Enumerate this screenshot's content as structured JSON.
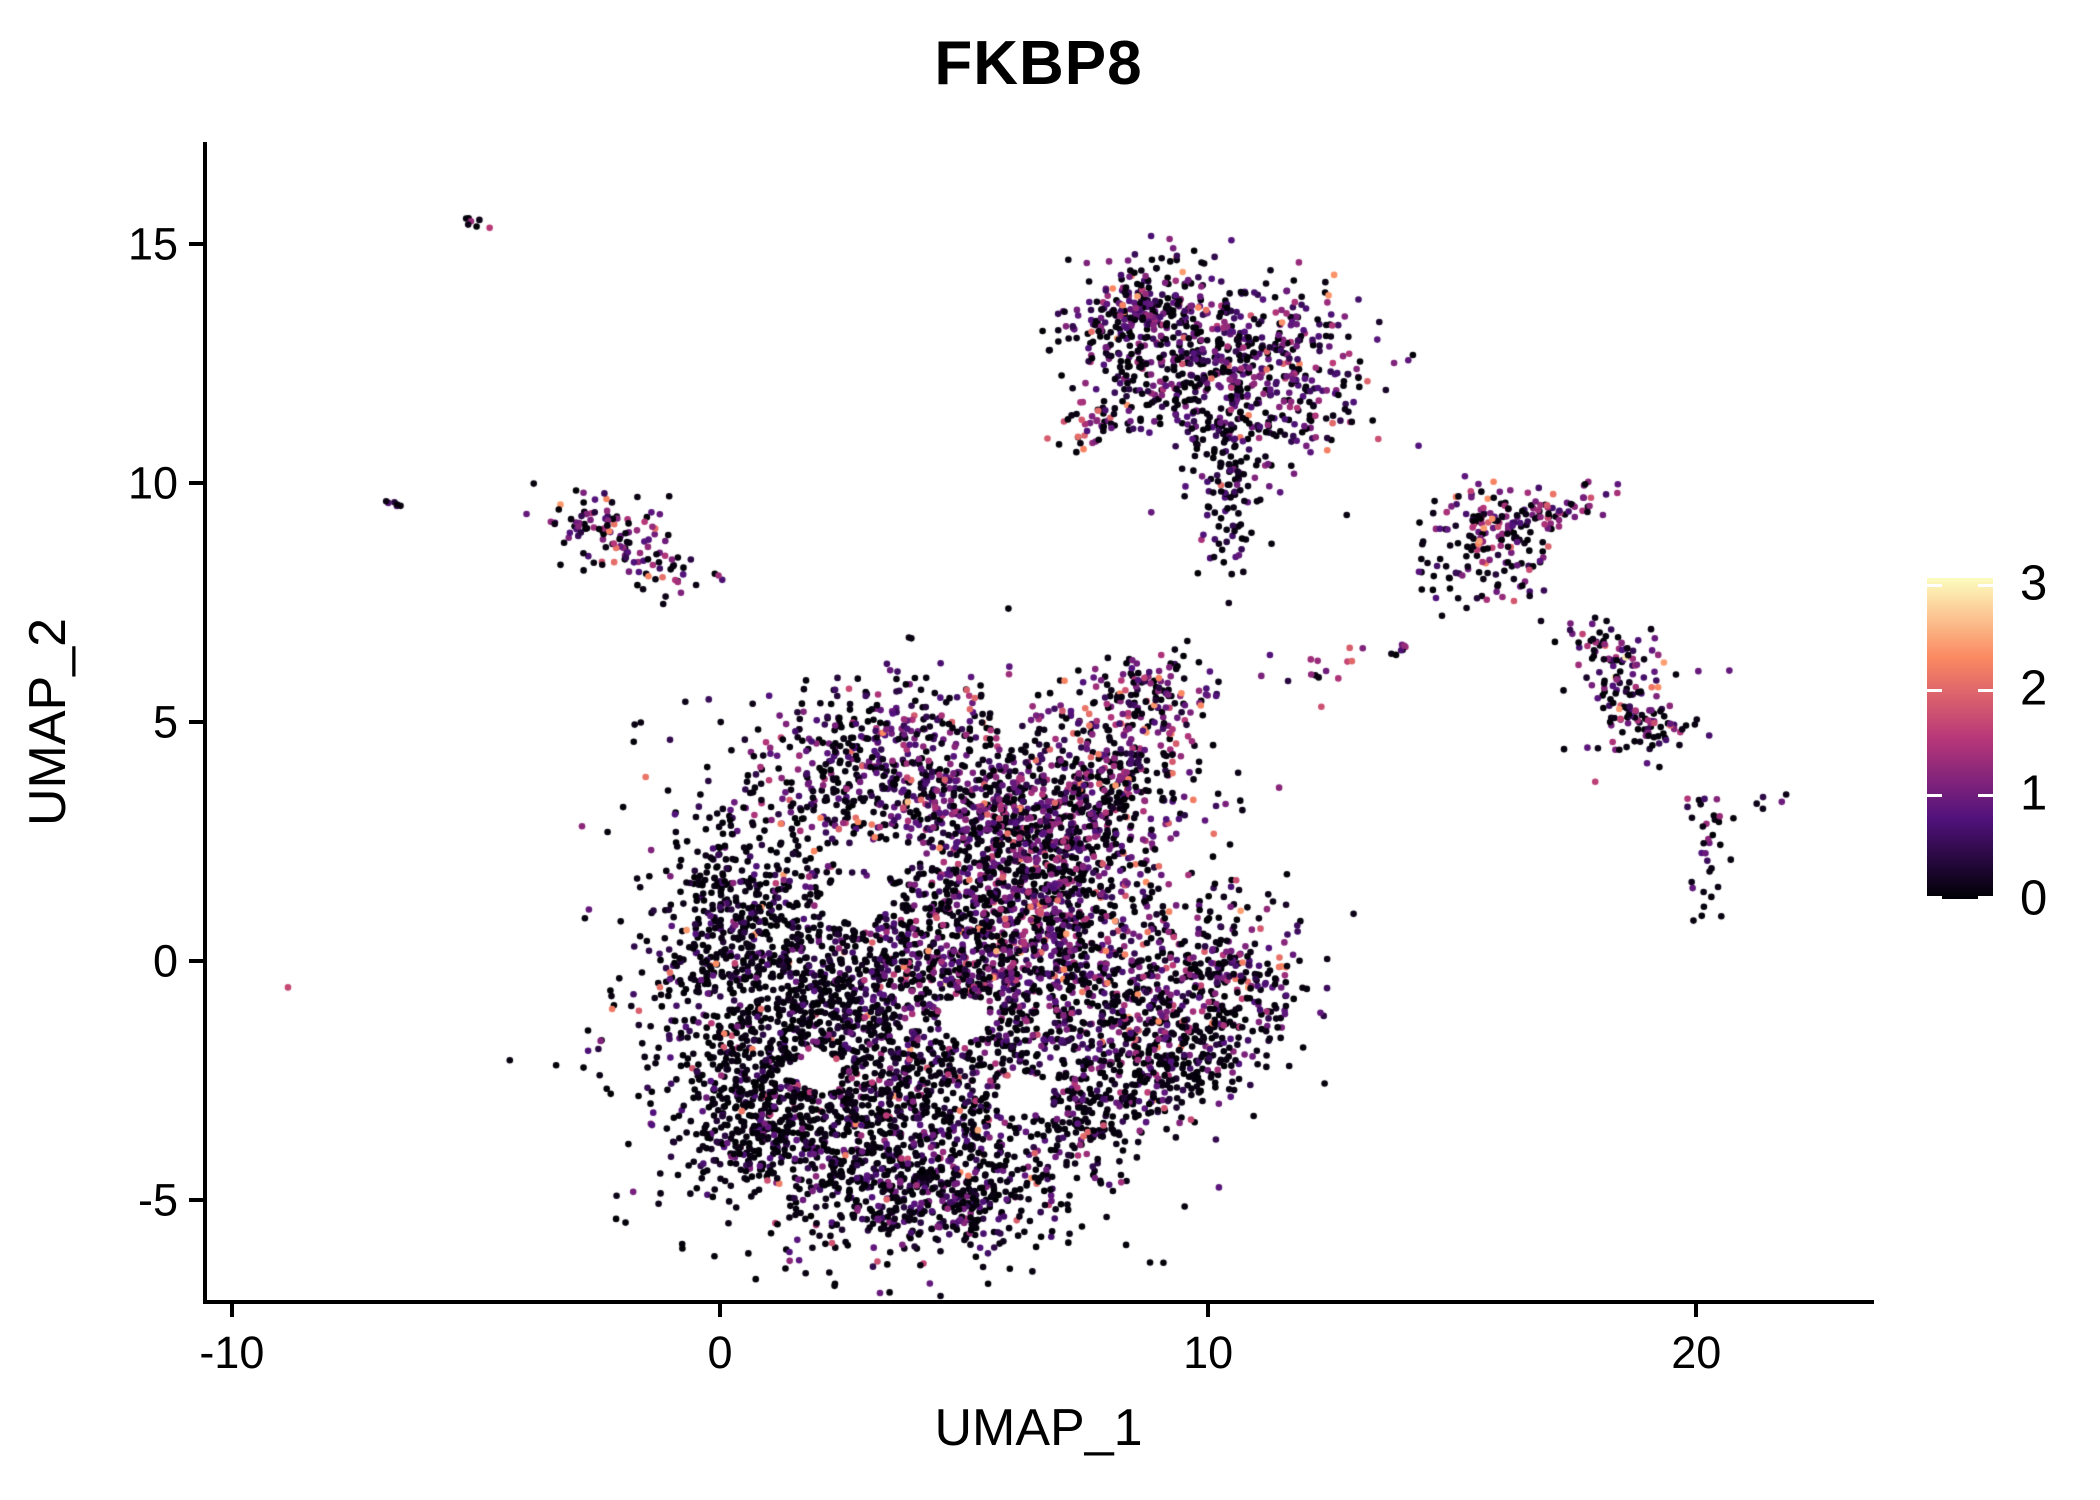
{
  "title": "FKBP8",
  "chart_data": {
    "type": "scatter",
    "title": "FKBP8",
    "xlabel": "UMAP_1",
    "ylabel": "UMAP_2",
    "xlim": [
      -10.55,
      23.6
    ],
    "ylim": [
      -7.13,
      17.13
    ],
    "x_ticks": [
      -10,
      0,
      10,
      20
    ],
    "y_ticks": [
      -5,
      0,
      5,
      10,
      15
    ],
    "grid": false,
    "background": "#ffffff",
    "axis_color": "#000000",
    "legend": {
      "position": "right",
      "tick_values": [
        0,
        1,
        2,
        3
      ],
      "value_range": [
        0,
        3.06
      ],
      "tick_color": "#ffffff"
    },
    "colormap": {
      "name": "magma",
      "stops": [
        [
          0,
          "#000004"
        ],
        [
          0.25,
          "#51127c"
        ],
        [
          0.5,
          "#b73779"
        ],
        [
          0.75,
          "#fb8861"
        ],
        [
          1,
          "#fcfdbf"
        ]
      ]
    },
    "point_radius_px": 3.3,
    "seed": 42,
    "clusters": [
      {
        "name": "tiny-topleft-streak",
        "cx": -5.0,
        "cy": 15.45,
        "sx": 0.16,
        "sy": 0.07,
        "rot": -40,
        "n": 7,
        "expr": {
          "p0": 0.25,
          "mu": 0.9,
          "sd": 0.3,
          "p2": 0.05
        }
      },
      {
        "name": "tiny-left-dot",
        "cx": -6.75,
        "cy": 9.6,
        "sx": 0.14,
        "sy": 0.07,
        "rot": -30,
        "n": 6,
        "expr": {
          "p0": 0.5,
          "mu": 0.7,
          "sd": 0.3,
          "p2": 0
        }
      },
      {
        "name": "left-cluster-a",
        "cx": -2.55,
        "cy": 9.2,
        "sx": 0.5,
        "sy": 0.28,
        "rot": -15,
        "n": 50,
        "expr": {
          "p0": 0.45,
          "mu": 0.9,
          "sd": 0.35,
          "p2": 0.08
        }
      },
      {
        "name": "left-cluster-b",
        "cx": -1.45,
        "cy": 8.4,
        "sx": 0.5,
        "sy": 0.3,
        "rot": -25,
        "n": 55,
        "expr": {
          "p0": 0.4,
          "mu": 1.0,
          "sd": 0.35,
          "p2": 0.1
        }
      },
      {
        "name": "left-cluster-halo",
        "cx": -2.0,
        "cy": 8.8,
        "sx": 0.75,
        "sy": 0.55,
        "rot": 0,
        "n": 30,
        "expr": {
          "p0": 0.6,
          "mu": 0.8,
          "sd": 0.3,
          "p2": 0.05
        }
      },
      {
        "name": "top-cluster-left-lobe",
        "cx": 8.55,
        "cy": 13.5,
        "sx": 0.75,
        "sy": 0.5,
        "rot": 10,
        "n": 240,
        "expr": {
          "p0": 0.4,
          "mu": 0.95,
          "sd": 0.3,
          "p2": 0.05
        }
      },
      {
        "name": "top-cluster-main",
        "cx": 11.1,
        "cy": 12.3,
        "sx": 1.15,
        "sy": 0.95,
        "rot": 0,
        "n": 430,
        "expr": {
          "p0": 0.45,
          "mu": 0.9,
          "sd": 0.35,
          "p2": 0.03
        }
      },
      {
        "name": "top-cluster-mid",
        "cx": 9.6,
        "cy": 12.4,
        "sx": 1.0,
        "sy": 0.85,
        "rot": 0,
        "n": 230,
        "expr": {
          "p0": 0.55,
          "mu": 0.85,
          "sd": 0.3,
          "p2": 0.03
        }
      },
      {
        "name": "top-cluster-left-streak",
        "cx": 7.8,
        "cy": 11.4,
        "sx": 0.55,
        "sy": 0.22,
        "rot": 35,
        "n": 45,
        "expr": {
          "p0": 0.35,
          "mu": 1.0,
          "sd": 0.35,
          "p2": 0.12
        }
      },
      {
        "name": "top-cluster-tail",
        "cx": 10.35,
        "cy": 10.2,
        "sx": 0.33,
        "sy": 0.85,
        "rot": 0,
        "n": 80,
        "expr": {
          "p0": 0.65,
          "mu": 0.8,
          "sd": 0.3,
          "p2": 0.02
        }
      },
      {
        "name": "top-cluster-tail-tip",
        "cx": 10.4,
        "cy": 8.9,
        "sx": 0.22,
        "sy": 0.5,
        "rot": 0,
        "n": 26,
        "expr": {
          "p0": 0.7,
          "mu": 0.7,
          "sd": 0.3,
          "p2": 0
        }
      },
      {
        "name": "top-cluster-top-spur",
        "cx": 9.35,
        "cy": 14.45,
        "sx": 0.16,
        "sy": 0.38,
        "rot": 0,
        "n": 14,
        "expr": {
          "p0": 0.45,
          "mu": 0.9,
          "sd": 0.3,
          "p2": 0.05
        }
      },
      {
        "name": "right-upper-main",
        "cx": 15.9,
        "cy": 9.25,
        "sx": 0.6,
        "sy": 0.42,
        "rot": 0,
        "n": 100,
        "expr": {
          "p0": 0.3,
          "mu": 1.0,
          "sd": 0.35,
          "p2": 0.08
        }
      },
      {
        "name": "right-upper-streak",
        "cx": 17.3,
        "cy": 9.45,
        "sx": 0.65,
        "sy": 0.18,
        "rot": 18,
        "n": 45,
        "expr": {
          "p0": 0.3,
          "mu": 1.05,
          "sd": 0.35,
          "p2": 0.08
        }
      },
      {
        "name": "right-upper-lower",
        "cx": 15.8,
        "cy": 8.35,
        "sx": 0.55,
        "sy": 0.5,
        "rot": 0,
        "n": 70,
        "expr": {
          "p0": 0.55,
          "mu": 0.9,
          "sd": 0.3,
          "p2": 0.05
        }
      },
      {
        "name": "right-upper-strays",
        "cx": 14.9,
        "cy": 7.85,
        "sx": 0.55,
        "sy": 0.3,
        "rot": -20,
        "n": 14,
        "expr": {
          "p0": 0.8,
          "mu": 0.7,
          "sd": 0.2,
          "p2": 0
        }
      },
      {
        "name": "right-hook-top",
        "cx": 18.25,
        "cy": 6.5,
        "sx": 0.6,
        "sy": 0.28,
        "rot": -20,
        "n": 55,
        "expr": {
          "p0": 0.35,
          "mu": 1.0,
          "sd": 0.35,
          "p2": 0.1
        }
      },
      {
        "name": "right-hook-body",
        "cx": 18.6,
        "cy": 5.35,
        "sx": 0.5,
        "sy": 0.6,
        "rot": 0,
        "n": 95,
        "expr": {
          "p0": 0.45,
          "mu": 0.95,
          "sd": 0.35,
          "p2": 0.08
        }
      },
      {
        "name": "right-hook-tip",
        "cx": 19.25,
        "cy": 4.85,
        "sx": 0.35,
        "sy": 0.3,
        "rot": 0,
        "n": 30,
        "expr": {
          "p0": 0.5,
          "mu": 0.9,
          "sd": 0.3,
          "p2": 0.05
        }
      },
      {
        "name": "farright-upper",
        "cx": 20.3,
        "cy": 2.9,
        "sx": 0.28,
        "sy": 0.38,
        "rot": 0,
        "n": 18,
        "expr": {
          "p0": 0.55,
          "mu": 0.85,
          "sd": 0.3,
          "p2": 0
        }
      },
      {
        "name": "farright-lower",
        "cx": 20.2,
        "cy": 1.4,
        "sx": 0.22,
        "sy": 0.28,
        "rot": 0,
        "n": 10,
        "expr": {
          "p0": 0.55,
          "mu": 0.9,
          "sd": 0.3,
          "p2": 0
        }
      },
      {
        "name": "farright-pair",
        "cx": 21.5,
        "cy": 3.3,
        "sx": 0.18,
        "sy": 0.07,
        "rot": 25,
        "n": 5,
        "expr": {
          "p0": 0.4,
          "mu": 0.9,
          "sd": 0.3,
          "p2": 0
        }
      },
      {
        "name": "farright-trail",
        "cx": 20.25,
        "cy": 2.15,
        "sx": 0.1,
        "sy": 0.35,
        "rot": 0,
        "n": 6,
        "expr": {
          "p0": 0.7,
          "mu": 0.7,
          "sd": 0.2,
          "p2": 0
        }
      },
      {
        "name": "chain-arm",
        "cx": 12.5,
        "cy": 6.1,
        "sx": 0.85,
        "sy": 0.22,
        "rot": 12,
        "n": 16,
        "expr": {
          "p0": 0.4,
          "mu": 1.0,
          "sd": 0.4,
          "p2": 0.2
        }
      },
      {
        "name": "chain-arm-tip",
        "cx": 13.85,
        "cy": 6.5,
        "sx": 0.25,
        "sy": 0.1,
        "rot": 15,
        "n": 5,
        "expr": {
          "p0": 0.3,
          "mu": 1.2,
          "sd": 0.4,
          "p2": 0.3
        }
      },
      {
        "name": "main-upper-lobe",
        "cx": 3.5,
        "cy": 4.6,
        "sx": 1.35,
        "sy": 0.75,
        "rot": 0,
        "n": 340,
        "expr": {
          "p0": 0.45,
          "mu": 0.9,
          "sd": 0.35,
          "p2": 0.04
        }
      },
      {
        "name": "main-upper-band",
        "cx": 4.3,
        "cy": 3.2,
        "sx": 2.2,
        "sy": 0.6,
        "rot": 0,
        "n": 420,
        "expr": {
          "p0": 0.5,
          "mu": 0.9,
          "sd": 0.35,
          "p2": 0.05
        }
      },
      {
        "name": "main-left-mass",
        "cx": 1.2,
        "cy": -0.9,
        "sx": 1.45,
        "sy": 1.85,
        "rot": 0,
        "n": 950,
        "expr": {
          "p0": 0.78,
          "mu": 0.6,
          "sd": 0.3,
          "p2": 0.02
        }
      },
      {
        "name": "main-center-mass",
        "cx": 4.0,
        "cy": -0.6,
        "sx": 1.8,
        "sy": 1.6,
        "rot": 0,
        "n": 1050,
        "expr": {
          "p0": 0.62,
          "mu": 0.8,
          "sd": 0.35,
          "p2": 0.03
        }
      },
      {
        "name": "main-right-mass",
        "cx": 6.4,
        "cy": 0.9,
        "sx": 1.35,
        "sy": 1.7,
        "rot": 0,
        "n": 900,
        "expr": {
          "p0": 0.42,
          "mu": 0.95,
          "sd": 0.35,
          "p2": 0.04
        }
      },
      {
        "name": "main-bottom-mass",
        "cx": 3.9,
        "cy": -3.6,
        "sx": 1.95,
        "sy": 1.25,
        "rot": 0,
        "n": 980,
        "expr": {
          "p0": 0.66,
          "mu": 0.75,
          "sd": 0.35,
          "p2": 0.03
        }
      },
      {
        "name": "main-bottom-tip",
        "cx": 4.4,
        "cy": -5.0,
        "sx": 1.25,
        "sy": 0.55,
        "rot": 0,
        "n": 260,
        "expr": {
          "p0": 0.62,
          "mu": 0.75,
          "sd": 0.3,
          "p2": 0.02
        }
      },
      {
        "name": "main-right-arm",
        "cx": 7.9,
        "cy": 4.1,
        "sx": 0.95,
        "sy": 0.85,
        "rot": 0,
        "n": 270,
        "expr": {
          "p0": 0.45,
          "mu": 0.95,
          "sd": 0.4,
          "p2": 0.1
        }
      },
      {
        "name": "main-right-arm-top",
        "cx": 8.7,
        "cy": 5.5,
        "sx": 0.75,
        "sy": 0.5,
        "rot": 0,
        "n": 130,
        "expr": {
          "p0": 0.5,
          "mu": 0.9,
          "sd": 0.4,
          "p2": 0.12
        }
      },
      {
        "name": "main-lowright-lobe",
        "cx": 8.9,
        "cy": -1.0,
        "sx": 1.15,
        "sy": 1.15,
        "rot": 0,
        "n": 430,
        "expr": {
          "p0": 0.55,
          "mu": 0.85,
          "sd": 0.35,
          "p2": 0.05
        }
      },
      {
        "name": "main-lowright-lobe2",
        "cx": 10.4,
        "cy": -0.3,
        "sx": 0.85,
        "sy": 0.85,
        "rot": 0,
        "n": 210,
        "expr": {
          "p0": 0.5,
          "mu": 0.9,
          "sd": 0.35,
          "p2": 0.08
        }
      },
      {
        "name": "main-lowright-edge",
        "cx": 9.0,
        "cy": -2.3,
        "sx": 1.35,
        "sy": 0.5,
        "rot": 33,
        "n": 230,
        "expr": {
          "p0": 0.72,
          "mu": 0.7,
          "sd": 0.3,
          "p2": 0.03
        }
      },
      {
        "name": "main-mid-join",
        "cx": 6.6,
        "cy": 2.3,
        "sx": 0.95,
        "sy": 0.95,
        "rot": 0,
        "n": 300,
        "expr": {
          "p0": 0.5,
          "mu": 0.9,
          "sd": 0.35,
          "p2": 0.05
        }
      },
      {
        "name": "main-left-bump",
        "cx": 0.3,
        "cy": 1.1,
        "sx": 0.65,
        "sy": 0.95,
        "rot": 0,
        "n": 160,
        "expr": {
          "p0": 0.8,
          "mu": 0.6,
          "sd": 0.25,
          "p2": 0.02
        }
      },
      {
        "name": "main-lowleft-edge",
        "cx": 0.9,
        "cy": -3.2,
        "sx": 0.85,
        "sy": 0.95,
        "rot": 0,
        "n": 230,
        "expr": {
          "p0": 0.8,
          "mu": 0.6,
          "sd": 0.25,
          "p2": 0.02
        }
      }
    ],
    "voids": [
      {
        "cx": 2.8,
        "cy": 1.3,
        "rx": 0.7,
        "ry": 0.5
      },
      {
        "cx": 3.3,
        "cy": 2.2,
        "rx": 0.9,
        "ry": 0.35
      },
      {
        "cx": 5.0,
        "cy": -1.2,
        "rx": 0.55,
        "ry": 0.45
      },
      {
        "cx": 2.0,
        "cy": -2.3,
        "rx": 0.5,
        "ry": 0.4
      },
      {
        "cx": 6.2,
        "cy": -2.8,
        "rx": 0.55,
        "ry": 0.45
      }
    ],
    "highlight_points": [
      {
        "x": 18.55,
        "y": 6.35,
        "v": 2.95
      },
      {
        "x": -8.85,
        "y": -0.55,
        "v": 1.7
      },
      {
        "x": 12.9,
        "y": 6.55,
        "v": 1.9
      },
      {
        "x": 12.55,
        "y": 11.25,
        "v": 2.0
      }
    ]
  }
}
